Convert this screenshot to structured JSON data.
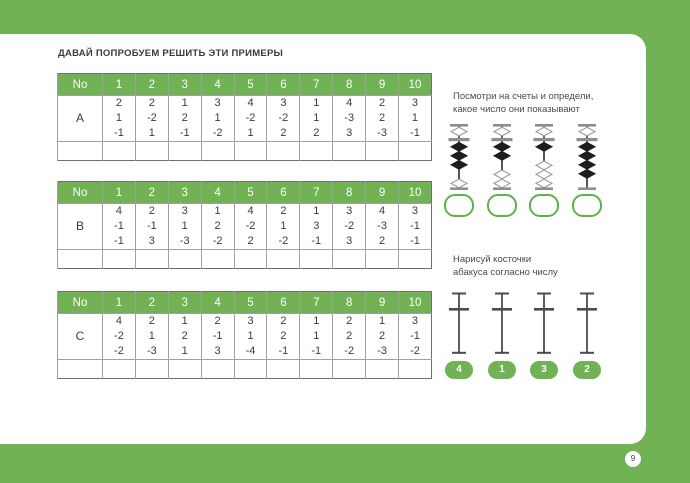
{
  "page": {
    "title": "ДАВАЙ ПОПРОБУЕМ РЕШИТЬ ЭТИ ПРИМЕРЫ",
    "page_number": "9"
  },
  "colors": {
    "green": "#70b254",
    "bead_black": "#1d1d1d",
    "bar_gray": "#8e8e8e",
    "rod_dark": "#4c4c4c"
  },
  "tables": [
    {
      "label": "A",
      "header": [
        "No",
        "1",
        "2",
        "3",
        "4",
        "5",
        "6",
        "7",
        "8",
        "9",
        "10"
      ],
      "rows": [
        [
          "2",
          "2",
          "1",
          "3",
          "4",
          "3",
          "1",
          "4",
          "2",
          "3"
        ],
        [
          "1",
          "-2",
          "2",
          "1",
          "-2",
          "-2",
          "1",
          "-3",
          "2",
          "1"
        ],
        [
          "-1",
          "1",
          "-1",
          "-2",
          "1",
          "2",
          "2",
          "3",
          "-3",
          "-1"
        ]
      ]
    },
    {
      "label": "B",
      "header": [
        "No",
        "1",
        "2",
        "3",
        "4",
        "5",
        "6",
        "7",
        "8",
        "9",
        "10"
      ],
      "rows": [
        [
          "4",
          "2",
          "3",
          "1",
          "4",
          "2",
          "1",
          "3",
          "4",
          "3"
        ],
        [
          "-1",
          "-1",
          "1",
          "2",
          "-2",
          "1",
          "3",
          "-2",
          "-3",
          "-1"
        ],
        [
          "-1",
          "3",
          "-3",
          "-2",
          "2",
          "-2",
          "-1",
          "3",
          "2",
          "-1"
        ]
      ]
    },
    {
      "label": "C",
      "header": [
        "No",
        "1",
        "2",
        "3",
        "4",
        "5",
        "6",
        "7",
        "8",
        "9",
        "10"
      ],
      "rows": [
        [
          "4",
          "2",
          "1",
          "2",
          "3",
          "2",
          "1",
          "2",
          "1",
          "3"
        ],
        [
          "-2",
          "1",
          "2",
          "-1",
          "1",
          "2",
          "1",
          "2",
          "2",
          "-1"
        ],
        [
          "-2",
          "-3",
          "1",
          "3",
          "-4",
          "-1",
          "-1",
          "-2",
          "-3",
          "-2"
        ]
      ]
    }
  ],
  "abacus_read": {
    "instruction_line1": "Посмотри на счеты и определи,",
    "instruction_line2": "какое число они показывают",
    "rods": [
      {
        "beads_up": 3,
        "beads_down": 1
      },
      {
        "beads_up": 2,
        "beads_down": 2
      },
      {
        "beads_up": 1,
        "beads_down": 3
      },
      {
        "beads_up": 4,
        "beads_down": 0
      }
    ]
  },
  "abacus_draw": {
    "instruction_line1": "Нарисуй косточки",
    "instruction_line2": "абакуса согласно числу",
    "numbers": [
      "4",
      "1",
      "3",
      "2"
    ]
  }
}
